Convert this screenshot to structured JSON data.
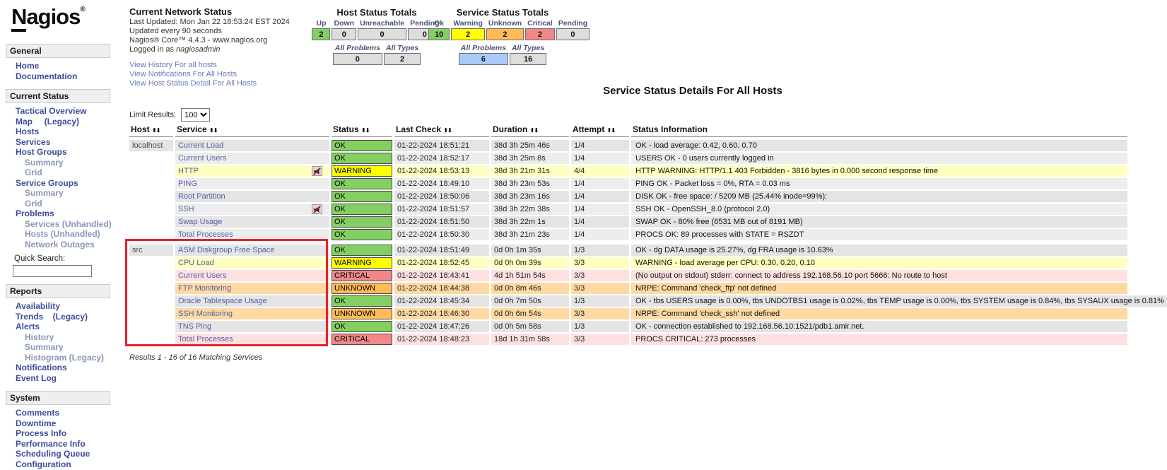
{
  "logo": {
    "text": "Nagios",
    "registered": "®"
  },
  "sidebar": {
    "quick_search_label": "Quick Search:",
    "sections": [
      {
        "title": "General",
        "items": [
          {
            "label": "Home"
          },
          {
            "label": "Documentation"
          }
        ]
      },
      {
        "title": "Current Status",
        "quick_search": true,
        "items": [
          {
            "label": "Tactical Overview"
          },
          {
            "label": "Map     (Legacy)"
          },
          {
            "label": "Hosts"
          },
          {
            "label": "Services"
          },
          {
            "label": "Host Groups"
          },
          {
            "label": "Summary",
            "indent": 1,
            "muted": true
          },
          {
            "label": "Grid",
            "indent": 1,
            "muted": true
          },
          {
            "label": "Service Groups"
          },
          {
            "label": "Summary",
            "indent": 1,
            "muted": true
          },
          {
            "label": "Grid",
            "indent": 1,
            "muted": true
          },
          {
            "label": "Problems"
          },
          {
            "label": "Services (Unhandled)",
            "indent": 1,
            "muted": true
          },
          {
            "label": "Hosts (Unhandled)",
            "indent": 1,
            "muted": true
          },
          {
            "label": "Network Outages",
            "indent": 1,
            "muted": true
          }
        ]
      },
      {
        "title": "Reports",
        "items": [
          {
            "label": "Availability"
          },
          {
            "label": "Trends    (Legacy)"
          },
          {
            "label": "Alerts"
          },
          {
            "label": "History",
            "indent": 1,
            "muted": true
          },
          {
            "label": "Summary",
            "indent": 1,
            "muted": true
          },
          {
            "label": "Histogram (Legacy)",
            "indent": 1,
            "muted": true
          },
          {
            "label": "Notifications"
          },
          {
            "label": "Event Log"
          }
        ]
      },
      {
        "title": "System",
        "items": [
          {
            "label": "Comments"
          },
          {
            "label": "Downtime"
          },
          {
            "label": "Process Info"
          },
          {
            "label": "Performance Info"
          },
          {
            "label": "Scheduling Queue"
          },
          {
            "label": "Configuration"
          }
        ]
      }
    ]
  },
  "header": {
    "network_status": {
      "title": "Current Network Status",
      "lines": [
        "Last Updated: Mon Jan 22 18:53:24 EST 2024",
        "Updated every 90 seconds",
        "Nagios® Core™ 4.4.3 - www.nagios.org"
      ],
      "logged_in_prefix": "Logged in as ",
      "logged_in_user": "nagiosadmin",
      "links": [
        "View History For all hosts",
        "View Notifications For All Hosts",
        "View Host Status Detail For All Hosts"
      ]
    },
    "host_totals": {
      "title": "Host Status Totals",
      "cells": [
        {
          "label": "Up",
          "value": "2",
          "color": "green"
        },
        {
          "label": "Down",
          "value": "0",
          "color": "gray"
        },
        {
          "label": "Unreachable",
          "value": "0",
          "color": "gray"
        },
        {
          "label": "Pending",
          "value": "0",
          "color": "gray"
        }
      ],
      "summary": [
        {
          "label": "All Problems",
          "value": "0",
          "color": "gray"
        },
        {
          "label": "All Types",
          "value": "2",
          "color": "gray"
        }
      ]
    },
    "service_totals": {
      "title": "Service Status Totals",
      "cells": [
        {
          "label": "Ok",
          "value": "10",
          "color": "green"
        },
        {
          "label": "Warning",
          "value": "2",
          "color": "yellow"
        },
        {
          "label": "Unknown",
          "value": "2",
          "color": "orange"
        },
        {
          "label": "Critical",
          "value": "2",
          "color": "red"
        },
        {
          "label": "Pending",
          "value": "0",
          "color": "gray"
        }
      ],
      "summary": [
        {
          "label": "All Problems",
          "value": "6",
          "color": "blue"
        },
        {
          "label": "All Types",
          "value": "16",
          "color": "gray"
        }
      ]
    }
  },
  "main": {
    "title": "Service Status Details For All Hosts",
    "limit_label": "Limit Results:",
    "limit_value": "100",
    "sort_arrows": "⬆⬇",
    "results_text": "Results 1 - 16 of 16 Matching Services",
    "table": {
      "headers": [
        "Host",
        "Service",
        "Status",
        "Last Check",
        "Duration",
        "Attempt",
        "Status Information"
      ],
      "rows": [
        {
          "host": "localhost",
          "group_start": true,
          "service": "Current Load",
          "status": "OK",
          "state": "ok",
          "last_check": "01-22-2024 18:51:21",
          "duration": "38d 3h 25m 46s",
          "attempt": "1/4",
          "info": "OK - load average: 0.42, 0.60, 0.70"
        },
        {
          "host": "",
          "service": "Current Users",
          "status": "OK",
          "state": "ok",
          "last_check": "01-22-2024 18:52:17",
          "duration": "38d 3h 25m 8s",
          "attempt": "1/4",
          "info": "USERS OK - 0 users currently logged in"
        },
        {
          "host": "",
          "service": "HTTP",
          "notif_icon": true,
          "status": "WARNING",
          "state": "warning",
          "last_check": "01-22-2024 18:53:13",
          "duration": "38d 3h 21m 31s",
          "attempt": "4/4",
          "info": "HTTP WARNING: HTTP/1.1 403 Forbidden - 3816 bytes in 0.000 second response time"
        },
        {
          "host": "",
          "service": "PING",
          "status": "OK",
          "state": "ok",
          "last_check": "01-22-2024 18:49:10",
          "duration": "38d 3h 23m 53s",
          "attempt": "1/4",
          "info": "PING OK - Packet loss = 0%, RTA = 0.03 ms"
        },
        {
          "host": "",
          "service": "Root Partition",
          "status": "OK",
          "state": "ok",
          "last_check": "01-22-2024 18:50:06",
          "duration": "38d 3h 23m 16s",
          "attempt": "1/4",
          "info": "DISK OK - free space: / 5209 MB (25.44% inode=99%):"
        },
        {
          "host": "",
          "service": "SSH",
          "notif_icon": true,
          "status": "OK",
          "state": "ok",
          "last_check": "01-22-2024 18:51:57",
          "duration": "38d 3h 22m 38s",
          "attempt": "1/4",
          "info": "SSH OK - OpenSSH_8.0 (protocol 2.0)"
        },
        {
          "host": "",
          "service": "Swap Usage",
          "status": "OK",
          "state": "ok",
          "last_check": "01-22-2024 18:51:50",
          "duration": "38d 3h 22m 1s",
          "attempt": "1/4",
          "info": "SWAP OK - 80% free (6531 MB out of 8191 MB)"
        },
        {
          "host": "",
          "service": "Total Processes",
          "status": "OK",
          "state": "ok",
          "last_check": "01-22-2024 18:50:30",
          "duration": "38d 3h 21m 23s",
          "attempt": "1/4",
          "info": "PROCS OK: 89 processes with STATE = RSZDT"
        },
        {
          "host": "src",
          "group_start": true,
          "service": "ASM Diskgroup Free Space",
          "status": "OK",
          "state": "ok",
          "last_check": "01-22-2024 18:51:49",
          "duration": "0d 0h 1m 35s",
          "attempt": "1/3",
          "info": "OK - dg DATA usage is 25.27%, dg FRA usage is 10.63%"
        },
        {
          "host": "",
          "service": "CPU Load",
          "status": "WARNING",
          "state": "warning",
          "last_check": "01-22-2024 18:52:45",
          "duration": "0d 0h 0m 39s",
          "attempt": "3/3",
          "info": "WARNING - load average per CPU: 0.30, 0.20, 0.10"
        },
        {
          "host": "",
          "service": "Current Users",
          "status": "CRITICAL",
          "state": "critical",
          "last_check": "01-22-2024 18:43:41",
          "duration": "4d 1h 51m 54s",
          "attempt": "3/3",
          "info": "(No output on stdout) stderr: connect to address 192.168.56.10 port 5666: No route to host"
        },
        {
          "host": "",
          "service": "FTP Monitoring",
          "status": "UNKNOWN",
          "state": "unknown",
          "last_check": "01-22-2024 18:44:38",
          "duration": "0d 0h 8m 46s",
          "attempt": "3/3",
          "info": "NRPE: Command 'check_ftp' not defined"
        },
        {
          "host": "",
          "service": "Oracle Tablespace Usage",
          "status": "OK",
          "state": "ok",
          "last_check": "01-22-2024 18:45:34",
          "duration": "0d 0h 7m 50s",
          "attempt": "1/3",
          "info": "OK - tbs USERS usage is 0.00%, tbs UNDOTBS1 usage is 0.02%, tbs TEMP usage is 0.00%, tbs SYSTEM usage is 0.84%, tbs SYSAUX usage is 0.81%"
        },
        {
          "host": "",
          "service": "SSH Monitoring",
          "status": "UNKNOWN",
          "state": "unknown",
          "last_check": "01-22-2024 18:46:30",
          "duration": "0d 0h 6m 54s",
          "attempt": "3/3",
          "info": "NRPE: Command 'check_ssh' not defined"
        },
        {
          "host": "",
          "service": "TNS Ping",
          "status": "OK",
          "state": "ok",
          "last_check": "01-22-2024 18:47:26",
          "duration": "0d 0h 5m 58s",
          "attempt": "1/3",
          "info": "OK - connection established to 192.168.56.10:1521/pdb1.amir.net."
        },
        {
          "host": "",
          "service": "Total Processes",
          "status": "CRITICAL",
          "state": "critical",
          "last_check": "01-22-2024 18:48:23",
          "duration": "18d 1h 31m 58s",
          "attempt": "3/3",
          "info": "PROCS CRITICAL: 273 processes"
        }
      ]
    }
  },
  "colors": {
    "green": "#84CF61",
    "yellow": "#FFFF00",
    "orange": "#FFBB55",
    "red": "#F18787",
    "gray": "#DDDDDD",
    "blue": "#A9CBF8",
    "row_ok_even": "#E4E4E4",
    "row_ok_odd": "#EDEDED",
    "row_warning": "#FEFFC1",
    "row_critical": "#FFE0E0",
    "row_unknown": "#FFD9A3",
    "annotation_red": "#E8222A"
  }
}
